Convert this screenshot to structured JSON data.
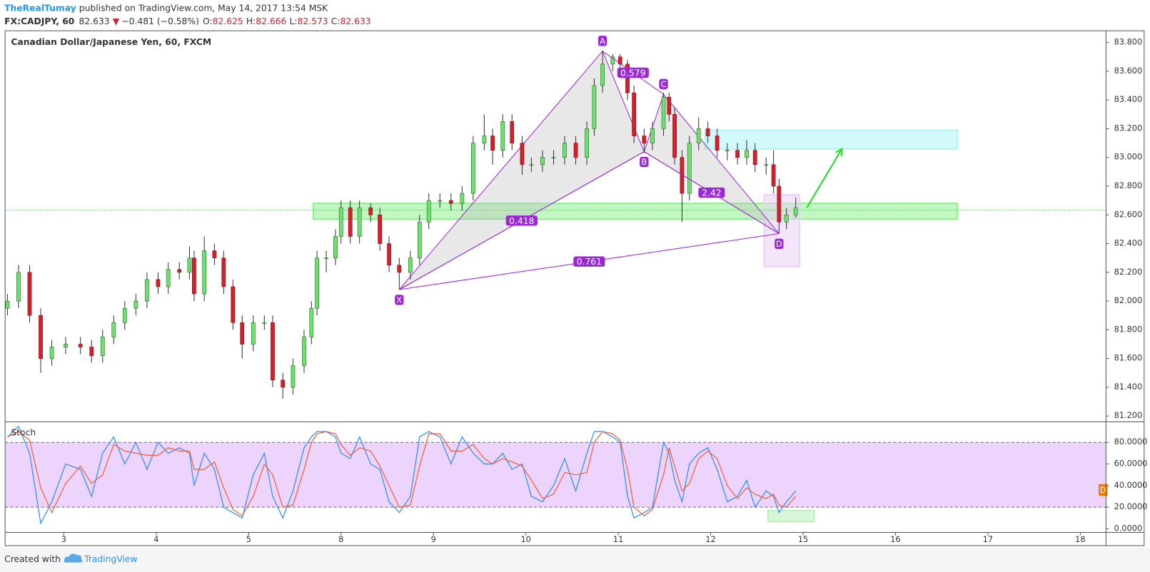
{
  "header": {
    "author": "TheRealTumay",
    "published": "published on TradingView.com, May 14, 2017 13:54 MSK",
    "symbol": "FX:CADJPY, 60",
    "last": "82.633",
    "arrow": "▼",
    "change": "−0.481 (−0.58%)",
    "o_label": "O:",
    "o": "82.625",
    "h_label": "H:",
    "h": "82.666",
    "l_label": "L:",
    "l": "82.573",
    "c_label": "C:",
    "c": "82.633"
  },
  "footer": {
    "created": "Created with",
    "brand": "TradingView"
  },
  "chart_data": [
    {
      "type": "candlestick",
      "title": "Canadian Dollar/Japanese Yen, 60, FXCM",
      "up_color": "#6ee06e",
      "down_color": "#d0212c",
      "xlim": [
        -0.635,
        11.278
      ],
      "xticks": [
        {
          "value": 0,
          "label": "3"
        },
        {
          "value": 1,
          "label": "4"
        },
        {
          "value": 2,
          "label": "5"
        },
        {
          "value": 3,
          "label": "8"
        },
        {
          "value": 4,
          "label": "9"
        },
        {
          "value": 5,
          "label": "10"
        },
        {
          "value": 6,
          "label": "11"
        },
        {
          "value": 7,
          "label": "12"
        },
        {
          "value": 8,
          "label": "15"
        },
        {
          "value": 9,
          "label": "16"
        },
        {
          "value": 10,
          "label": "17"
        },
        {
          "value": 11,
          "label": "18"
        }
      ],
      "ylim": [
        81.164,
        83.882
      ],
      "yticks": [
        {
          "value": 81.2,
          "label": "81.200"
        },
        {
          "value": 81.4,
          "label": "81.400"
        },
        {
          "value": 81.6,
          "label": "81.600"
        },
        {
          "value": 81.8,
          "label": "81.800"
        },
        {
          "value": 82.0,
          "label": "82.000"
        },
        {
          "value": 82.2,
          "label": "82.200"
        },
        {
          "value": 82.4,
          "label": "82.400"
        },
        {
          "value": 82.6,
          "label": "82.600"
        },
        {
          "value": 82.8,
          "label": "82.800"
        },
        {
          "value": 83.0,
          "label": "83.000"
        },
        {
          "value": 83.2,
          "label": "83.200"
        },
        {
          "value": 83.4,
          "label": "83.400"
        },
        {
          "value": 83.6,
          "label": "83.600"
        },
        {
          "value": 83.8,
          "label": "83.800"
        }
      ],
      "x": [
        -0.61,
        -0.49,
        -0.37,
        -0.25,
        -0.13,
        0.02,
        0.18,
        0.3,
        0.42,
        0.54,
        0.66,
        0.78,
        0.9,
        1.02,
        1.13,
        1.25,
        1.36,
        1.41,
        1.52,
        1.63,
        1.73,
        1.83,
        1.93,
        2.05,
        2.17,
        2.26,
        2.37,
        2.48,
        2.6,
        2.68,
        2.74,
        2.84,
        2.94,
        3.0,
        3.1,
        3.2,
        3.32,
        3.42,
        3.52,
        3.63,
        3.75,
        3.85,
        3.95,
        4.07,
        4.19,
        4.31,
        4.43,
        4.55,
        4.64,
        4.75,
        4.85,
        4.96,
        5.06,
        5.18,
        5.3,
        5.42,
        5.54,
        5.66,
        5.74,
        5.83,
        5.94,
        6.02,
        6.1,
        6.17,
        6.28,
        6.37,
        6.49,
        6.55,
        6.61,
        6.69,
        6.77,
        6.87,
        6.97,
        7.07,
        7.18,
        7.29,
        7.39,
        7.48,
        7.6,
        7.68,
        7.74,
        7.82,
        7.92
      ],
      "open": [
        81.95,
        82.0,
        82.2,
        81.9,
        81.6,
        81.68,
        81.7,
        81.68,
        81.62,
        81.75,
        81.85,
        81.95,
        82.0,
        82.15,
        82.1,
        82.22,
        82.2,
        82.3,
        82.05,
        82.35,
        82.3,
        82.1,
        81.85,
        81.7,
        81.85,
        81.85,
        81.45,
        81.4,
        81.55,
        81.75,
        81.95,
        82.3,
        82.3,
        82.45,
        82.65,
        82.45,
        82.65,
        82.6,
        82.4,
        82.25,
        82.2,
        82.3,
        82.55,
        82.7,
        82.7,
        82.68,
        82.75,
        83.1,
        83.15,
        83.05,
        83.25,
        83.1,
        82.95,
        82.95,
        83.0,
        83.0,
        83.1,
        83.0,
        83.2,
        83.5,
        83.65,
        83.7,
        83.65,
        83.45,
        83.15,
        83.1,
        83.2,
        83.42,
        83.3,
        83.0,
        82.75,
        83.1,
        83.2,
        83.15,
        83.05,
        83.05,
        83.0,
        83.05,
        82.95,
        82.95,
        82.8,
        82.55,
        82.6
      ],
      "high": [
        82.05,
        82.25,
        82.25,
        81.95,
        81.73,
        81.75,
        81.75,
        81.73,
        81.8,
        81.9,
        82.0,
        82.05,
        82.2,
        82.2,
        82.27,
        82.27,
        82.38,
        82.35,
        82.45,
        82.4,
        82.35,
        82.15,
        81.9,
        81.9,
        81.9,
        81.9,
        81.5,
        81.6,
        81.8,
        82.0,
        82.35,
        82.35,
        82.5,
        82.7,
        82.7,
        82.7,
        82.68,
        82.65,
        82.45,
        82.3,
        82.35,
        82.6,
        82.75,
        82.75,
        82.75,
        82.8,
        83.15,
        83.3,
        83.2,
        83.3,
        83.3,
        83.15,
        83.0,
        83.05,
        83.05,
        83.15,
        83.15,
        83.25,
        83.55,
        83.74,
        83.72,
        83.72,
        83.68,
        83.5,
        83.2,
        83.25,
        83.45,
        83.45,
        83.35,
        83.05,
        83.15,
        83.28,
        83.25,
        83.2,
        83.1,
        83.1,
        83.12,
        83.1,
        83.0,
        83.05,
        82.85,
        82.65,
        82.72
      ],
      "low": [
        81.9,
        81.95,
        81.85,
        81.5,
        81.55,
        81.63,
        81.63,
        81.57,
        81.57,
        81.7,
        81.8,
        81.9,
        81.95,
        82.05,
        82.05,
        82.15,
        82.15,
        82.0,
        82.0,
        82.25,
        82.05,
        81.8,
        81.6,
        81.65,
        81.8,
        81.4,
        81.32,
        81.35,
        81.5,
        81.7,
        81.9,
        82.2,
        82.25,
        82.4,
        82.4,
        82.4,
        82.55,
        82.35,
        82.2,
        82.08,
        82.15,
        82.25,
        82.5,
        82.65,
        82.63,
        82.63,
        82.7,
        83.05,
        82.95,
        83.0,
        83.05,
        82.88,
        82.9,
        82.9,
        82.95,
        82.95,
        82.95,
        82.95,
        83.15,
        83.45,
        83.6,
        83.6,
        83.4,
        83.1,
        83.03,
        83.05,
        83.15,
        83.25,
        82.95,
        82.55,
        82.7,
        83.05,
        83.1,
        83.0,
        82.98,
        82.95,
        82.95,
        82.9,
        82.88,
        82.75,
        82.47,
        82.5,
        82.58
      ],
      "close": [
        82.0,
        82.2,
        81.9,
        81.6,
        81.68,
        81.7,
        81.68,
        81.62,
        81.75,
        81.85,
        81.95,
        82.0,
        82.15,
        82.1,
        82.22,
        82.2,
        82.3,
        82.05,
        82.35,
        82.3,
        82.1,
        81.85,
        81.7,
        81.85,
        81.85,
        81.45,
        81.4,
        81.55,
        81.75,
        81.95,
        82.3,
        82.3,
        82.45,
        82.65,
        82.45,
        82.65,
        82.6,
        82.4,
        82.25,
        82.2,
        82.3,
        82.55,
        82.7,
        82.7,
        82.68,
        82.75,
        83.1,
        83.15,
        83.05,
        83.25,
        83.1,
        82.95,
        82.95,
        83.0,
        83.0,
        83.1,
        83.0,
        83.2,
        83.5,
        83.65,
        83.7,
        83.65,
        83.45,
        83.15,
        83.1,
        83.2,
        83.42,
        83.3,
        83.0,
        82.75,
        83.1,
        83.2,
        83.15,
        83.05,
        83.05,
        83.0,
        83.05,
        82.95,
        82.95,
        82.8,
        82.55,
        82.6,
        82.65
      ],
      "price_line": 82.633,
      "zones": [
        {
          "x": [
            2.7,
            9.67
          ],
          "y": [
            82.57,
            82.68
          ],
          "color": "#90ee90"
        },
        {
          "x": [
            6.94,
            9.67
          ],
          "y": [
            83.06,
            83.19
          ],
          "color": "#aef6f6"
        },
        {
          "x": [
            7.58,
            7.96
          ],
          "y": [
            82.24,
            82.74
          ],
          "color": "#ead2f7"
        }
      ],
      "arrow": {
        "x": [
          8.04,
          8.42
        ],
        "y": [
          82.65,
          83.06
        ],
        "color": "#22dd22"
      },
      "pattern": {
        "color": "#9c27d6",
        "points": [
          {
            "label": "X",
            "x": 3.63,
            "y": 82.08
          },
          {
            "label": "A",
            "x": 5.83,
            "y": 83.74
          },
          {
            "label": "B",
            "x": 6.28,
            "y": 83.04
          },
          {
            "label": "C",
            "x": 6.49,
            "y": 83.44
          },
          {
            "label": "D",
            "x": 7.74,
            "y": 82.47
          }
        ],
        "ratios": [
          0.418,
          0.579,
          2.42,
          0.761
        ]
      }
    },
    {
      "type": "line",
      "title": "Stoch",
      "band_color": "#e9c9fb",
      "ylim": [
        -3.39,
        98.31
      ],
      "yticks": [
        {
          "value": 0,
          "label": "0.0000"
        },
        {
          "value": 20,
          "label": "20.0000"
        },
        {
          "value": 40,
          "label": "40.0000"
        },
        {
          "value": 60,
          "label": "60.0000"
        },
        {
          "value": 80,
          "label": "80.0000"
        }
      ],
      "bands": [
        20,
        80
      ],
      "series": [
        {
          "color": "#2f8df5",
          "values": [
            85,
            95,
            70,
            5,
            25,
            60,
            55,
            30,
            70,
            85,
            60,
            80,
            55,
            80,
            70,
            75,
            70,
            40,
            70,
            55,
            20,
            15,
            10,
            50,
            70,
            30,
            10,
            35,
            75,
            85,
            90,
            90,
            85,
            70,
            65,
            85,
            60,
            55,
            25,
            15,
            30,
            85,
            90,
            85,
            60,
            85,
            70,
            60,
            60,
            70,
            55,
            60,
            30,
            25,
            40,
            65,
            35,
            70,
            90,
            90,
            85,
            80,
            30,
            10,
            15,
            20,
            80,
            70,
            45,
            25,
            60,
            70,
            75,
            55,
            25,
            30,
            45,
            20,
            35,
            30,
            15,
            25,
            35
          ]
        },
        {
          "color": "#f0603a",
          "values": [
            85,
            90,
            82,
            38,
            15,
            42,
            58,
            42,
            50,
            78,
            72,
            70,
            68,
            68,
            75,
            72,
            72,
            55,
            55,
            62,
            38,
            18,
            12,
            30,
            60,
            50,
            20,
            22,
            55,
            80,
            88,
            90,
            88,
            78,
            68,
            75,
            72,
            58,
            40,
            20,
            22,
            58,
            88,
            88,
            72,
            72,
            78,
            65,
            60,
            65,
            62,
            58,
            45,
            28,
            32,
            52,
            50,
            52,
            80,
            90,
            88,
            82,
            55,
            20,
            12,
            18,
            50,
            75,
            58,
            35,
            42,
            65,
            72,
            65,
            40,
            28,
            38,
            32,
            28,
            32,
            22,
            20,
            30
          ]
        }
      ],
      "zones": [
        {
          "x": [
            7.62,
            8.12
          ],
          "y": [
            6.8,
            16.9
          ],
          "color": "#b8f0b8"
        }
      ],
      "marker": {
        "label": "D",
        "value": 36,
        "color": "#f57c00"
      }
    }
  ]
}
